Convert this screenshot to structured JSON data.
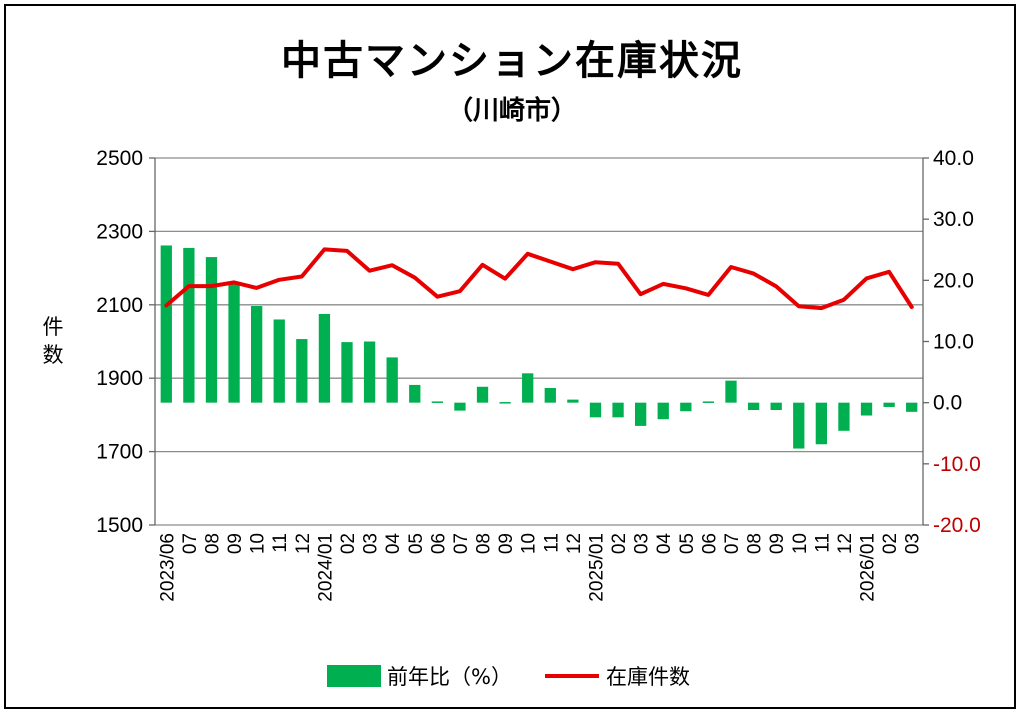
{
  "title": "中古マンション在庫状況",
  "subtitle": "（川崎市）",
  "colors": {
    "bar": "#00B050",
    "line": "#E80000",
    "grid": "#8c8c8c",
    "right_axis_text": "#C00000"
  },
  "chart_data": {
    "type": "bar+line",
    "title": "中古マンション在庫状況",
    "subtitle": "（川崎市）",
    "ylabel_left": "件数",
    "ylim_left": [
      1500,
      2500
    ],
    "yticks_left": [
      "2500",
      "2300",
      "2100",
      "1900",
      "1700",
      "1500"
    ],
    "ylim_right": [
      -20,
      40
    ],
    "yticks_right": [
      "40.0",
      "30.0",
      "20.0",
      "10.0",
      "0.0",
      "-10.0",
      "-20.0"
    ],
    "x_labels": [
      "2023/06",
      "07",
      "08",
      "09",
      "10",
      "11",
      "12",
      "2024/01",
      "02",
      "03",
      "04",
      "05",
      "06",
      "07",
      "08",
      "09",
      "10",
      "11",
      "12",
      "2025/01",
      "02",
      "03",
      "04",
      "05",
      "06",
      "07",
      "08",
      "09",
      "10",
      "11",
      "12",
      "2026/01",
      "02",
      "03"
    ],
    "legend_position": "bottom",
    "grid": true,
    "series": [
      {
        "name": "前年比（%）",
        "type": "bar",
        "axis": "right",
        "values": [
          25.7,
          25.3,
          23.8,
          19.5,
          15.8,
          13.6,
          10.4,
          14.5,
          9.9,
          10.0,
          7.4,
          2.9,
          0.2,
          -1.3,
          2.6,
          0.1,
          4.8,
          2.4,
          0.5,
          -2.4,
          -2.4,
          -3.8,
          -2.7,
          -1.4,
          0.2,
          3.6,
          -1.2,
          -1.2,
          -7.5,
          -6.8,
          -4.6,
          -2.1,
          -0.7,
          -1.5
        ]
      },
      {
        "name": "在庫件数",
        "type": "line",
        "axis": "left",
        "values": [
          2098,
          2151,
          2151,
          2161,
          2146,
          2168,
          2177,
          2251,
          2247,
          2193,
          2208,
          2174,
          2122,
          2137,
          2209,
          2171,
          2239,
          2218,
          2197,
          2216,
          2212,
          2129,
          2157,
          2145,
          2127,
          2203,
          2185,
          2150,
          2096,
          2091,
          2114,
          2172,
          2190,
          2094
        ]
      }
    ]
  }
}
